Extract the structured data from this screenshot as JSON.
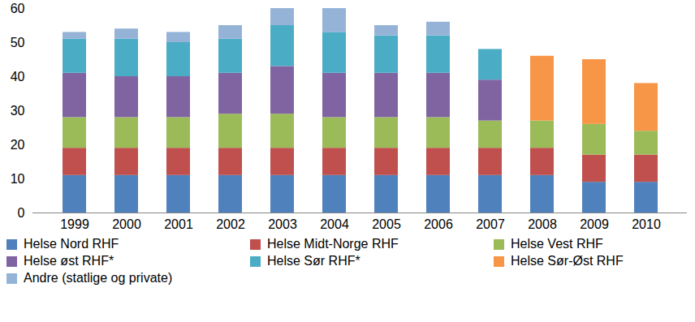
{
  "chart_data": {
    "type": "bar",
    "stacked": true,
    "categories": [
      "1999",
      "2000",
      "2001",
      "2002",
      "2003",
      "2004",
      "2005",
      "2006",
      "2007",
      "2008",
      "2009",
      "2010"
    ],
    "series": [
      {
        "name": "Helse Nord RHF",
        "color": "#4f81bd",
        "values": [
          11,
          11,
          11,
          11,
          11,
          11,
          11,
          11,
          11,
          11,
          9,
          9
        ]
      },
      {
        "name": "Helse Midt-Norge RHF",
        "color": "#c0504d",
        "values": [
          8,
          8,
          8,
          8,
          8,
          8,
          8,
          8,
          8,
          8,
          8,
          8
        ]
      },
      {
        "name": "Helse Vest RHF",
        "color": "#9bbb59",
        "values": [
          9,
          9,
          9,
          10,
          10,
          9,
          9,
          9,
          8,
          8,
          9,
          7
        ]
      },
      {
        "name": "Helse øst RHF*",
        "color": "#8064a2",
        "values": [
          13,
          12,
          12,
          12,
          14,
          13,
          13,
          13,
          12,
          null,
          null,
          null
        ]
      },
      {
        "name": "Helse Sør RHF*",
        "color": "#4bacc6",
        "values": [
          10,
          11,
          10,
          10,
          12,
          12,
          11,
          11,
          9,
          null,
          null,
          null
        ]
      },
      {
        "name": "Helse Sør-Øst RHF",
        "color": "#f79646",
        "values": [
          null,
          null,
          null,
          null,
          null,
          null,
          null,
          null,
          null,
          19,
          19,
          14
        ]
      },
      {
        "name": "Andre (statlige og private)",
        "color": "#95b3d7",
        "values": [
          2,
          3,
          3,
          4,
          5,
          7,
          3,
          4,
          null,
          null,
          null,
          null
        ]
      }
    ],
    "ylim": [
      0,
      60
    ],
    "yticks": [
      0,
      10,
      20,
      30,
      40,
      50,
      60
    ],
    "grid": false,
    "legend": "bottom"
  }
}
